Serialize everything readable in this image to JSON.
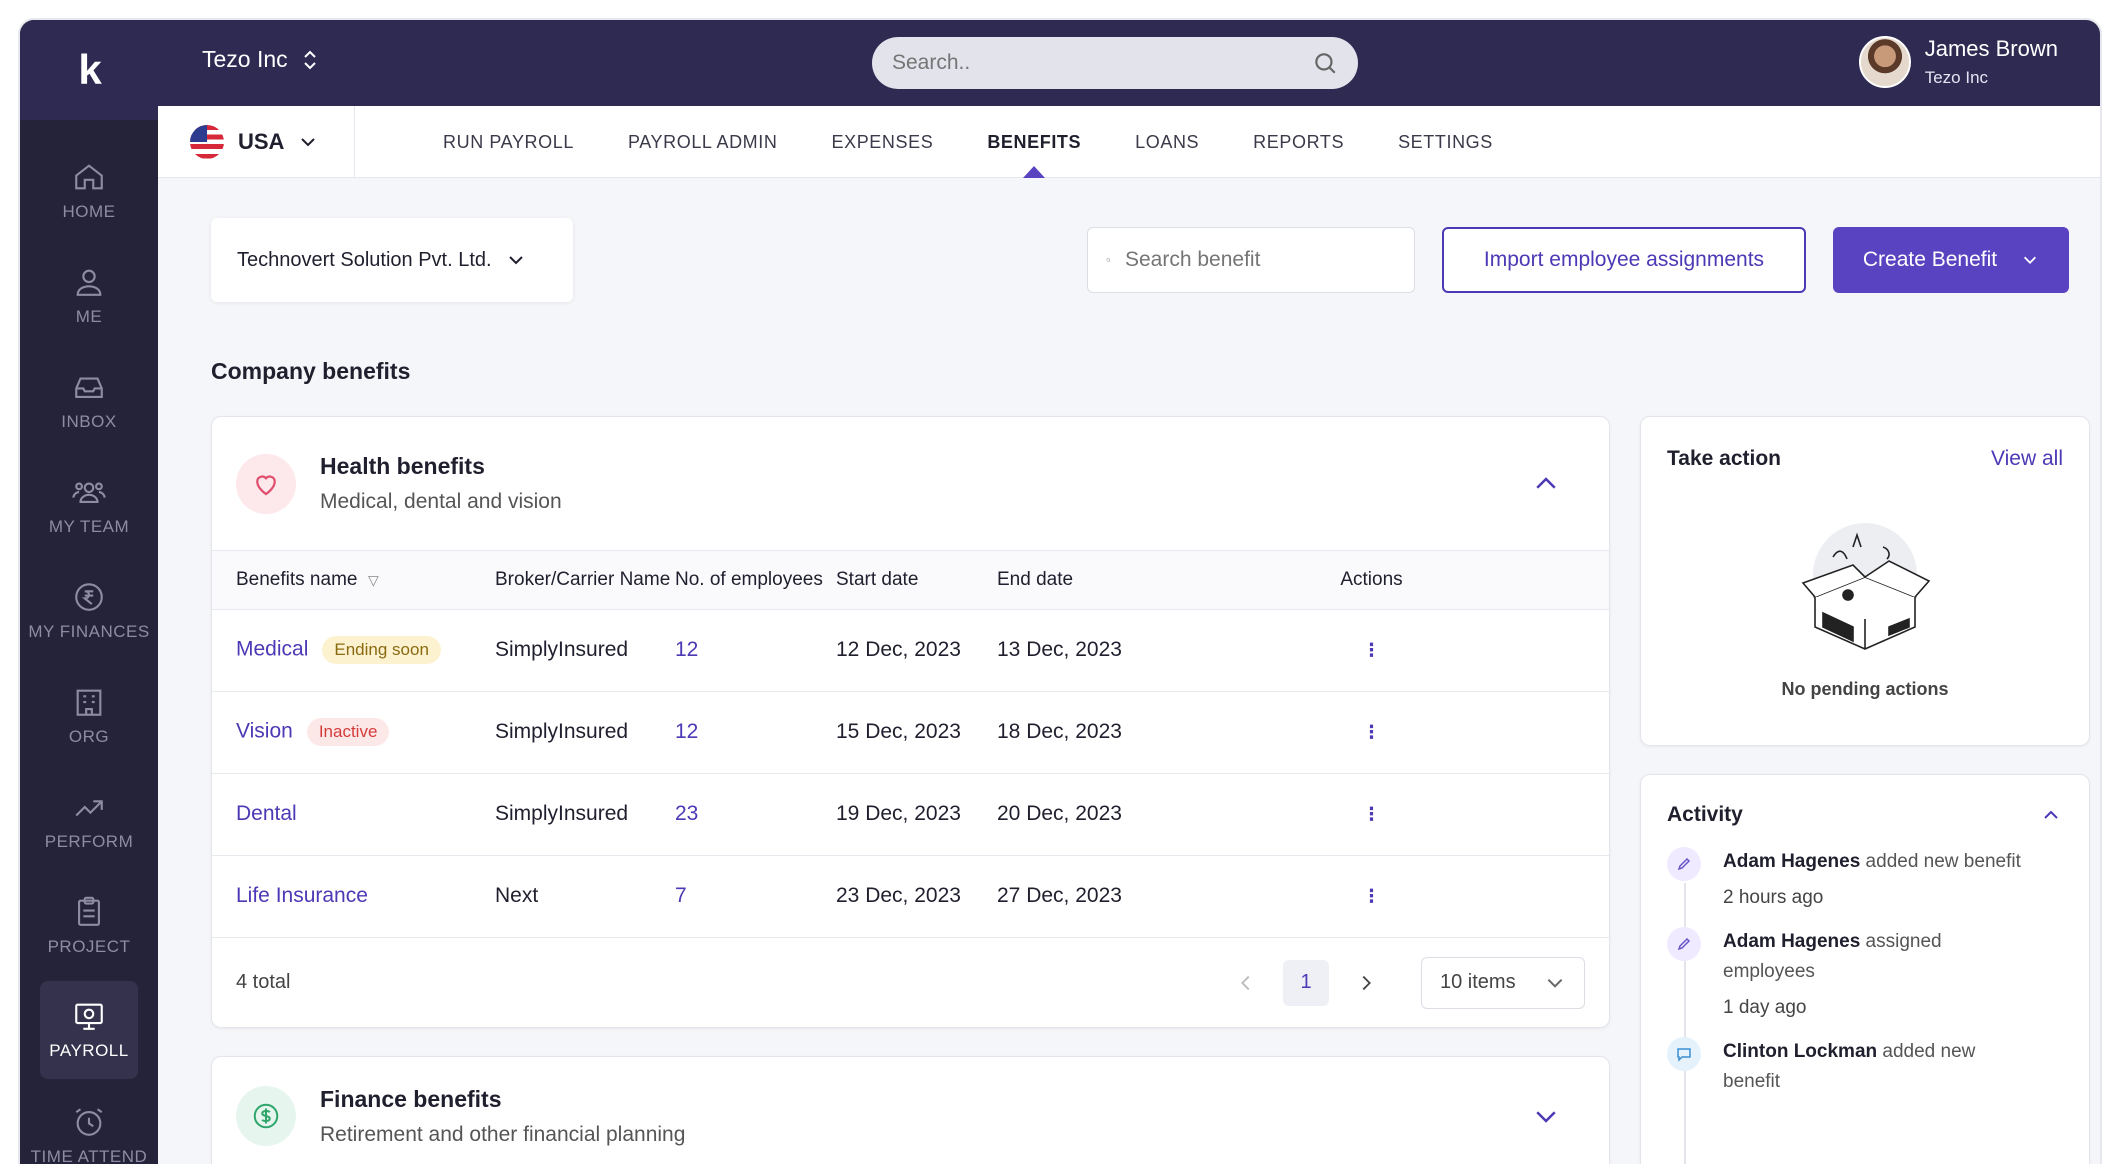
{
  "app": {
    "logo": "k",
    "company": "Tezo Inc",
    "search_placeholder": "Search..",
    "user": {
      "name": "James Brown",
      "org": "Tezo Inc"
    }
  },
  "sidebar": {
    "items": [
      {
        "label": "HOME",
        "icon": "home-icon"
      },
      {
        "label": "ME",
        "icon": "person-icon"
      },
      {
        "label": "INBOX",
        "icon": "inbox-icon"
      },
      {
        "label": "MY TEAM",
        "icon": "team-icon"
      },
      {
        "label": "MY FINANCES",
        "icon": "rupee-icon"
      },
      {
        "label": "ORG",
        "icon": "building-icon"
      },
      {
        "label": "PERFORM",
        "icon": "trend-icon"
      },
      {
        "label": "PROJECT",
        "icon": "clipboard-icon"
      },
      {
        "label": "PAYROLL",
        "icon": "payroll-icon",
        "active": true
      },
      {
        "label": "TIME ATTEND",
        "icon": "alarm-icon"
      }
    ]
  },
  "nav": {
    "country": "USA",
    "tabs": [
      "RUN PAYROLL",
      "PAYROLL ADMIN",
      "EXPENSES",
      "BENEFITS",
      "LOANS",
      "REPORTS",
      "SETTINGS"
    ],
    "active_tab": "BENEFITS"
  },
  "toolbar": {
    "entity": "Technovert Solution Pvt. Ltd.",
    "search_placeholder": "Search benefit",
    "import_label": "Import employee assignments",
    "create_label": "Create Benefit"
  },
  "page": {
    "section_title": "Company benefits"
  },
  "health": {
    "title": "Health benefits",
    "subtitle": "Medical, dental and vision",
    "columns": [
      "Benefits name",
      "Broker/Carrier Name",
      "No. of employees",
      "Start date",
      "End date",
      "Actions"
    ],
    "rows": [
      {
        "name": "Medical",
        "badge": "Ending soon",
        "badge_type": "ending",
        "broker": "SimplyInsured",
        "employees": "12",
        "start": "12 Dec, 2023",
        "end": "13 Dec, 2023"
      },
      {
        "name": "Vision",
        "badge": "Inactive",
        "badge_type": "inactive",
        "broker": "SimplyInsured",
        "employees": "12",
        "start": "15 Dec, 2023",
        "end": "18 Dec, 2023"
      },
      {
        "name": "Dental",
        "badge": "",
        "badge_type": "",
        "broker": "SimplyInsured",
        "employees": "23",
        "start": "19 Dec, 2023",
        "end": "20 Dec, 2023"
      },
      {
        "name": "Life Insurance",
        "badge": "",
        "badge_type": "",
        "broker": "Next",
        "employees": "7",
        "start": "23 Dec, 2023",
        "end": "27 Dec, 2023"
      }
    ],
    "total": "4 total",
    "page": "1",
    "items_per_page": "10 items"
  },
  "finance": {
    "title": "Finance benefits",
    "subtitle": "Retirement and other financial planning"
  },
  "take_action": {
    "title": "Take action",
    "view_all": "View all",
    "empty": "No pending actions"
  },
  "activity": {
    "title": "Activity",
    "items": [
      {
        "actor": "Adam Hagenes",
        "text": " added new benefit",
        "time": "2 hours ago",
        "icon": "pencil-icon"
      },
      {
        "actor": "Adam Hagenes",
        "text": " assigned employees",
        "time": "1 day ago",
        "icon": "pencil-icon"
      },
      {
        "actor": "Clinton Lockman",
        "text": " added new benefit",
        "time": "",
        "icon": "comment-icon"
      }
    ]
  },
  "colors": {
    "brand": "#2e2a52",
    "accent": "#5a43c0",
    "sidebar": "#25233a"
  }
}
